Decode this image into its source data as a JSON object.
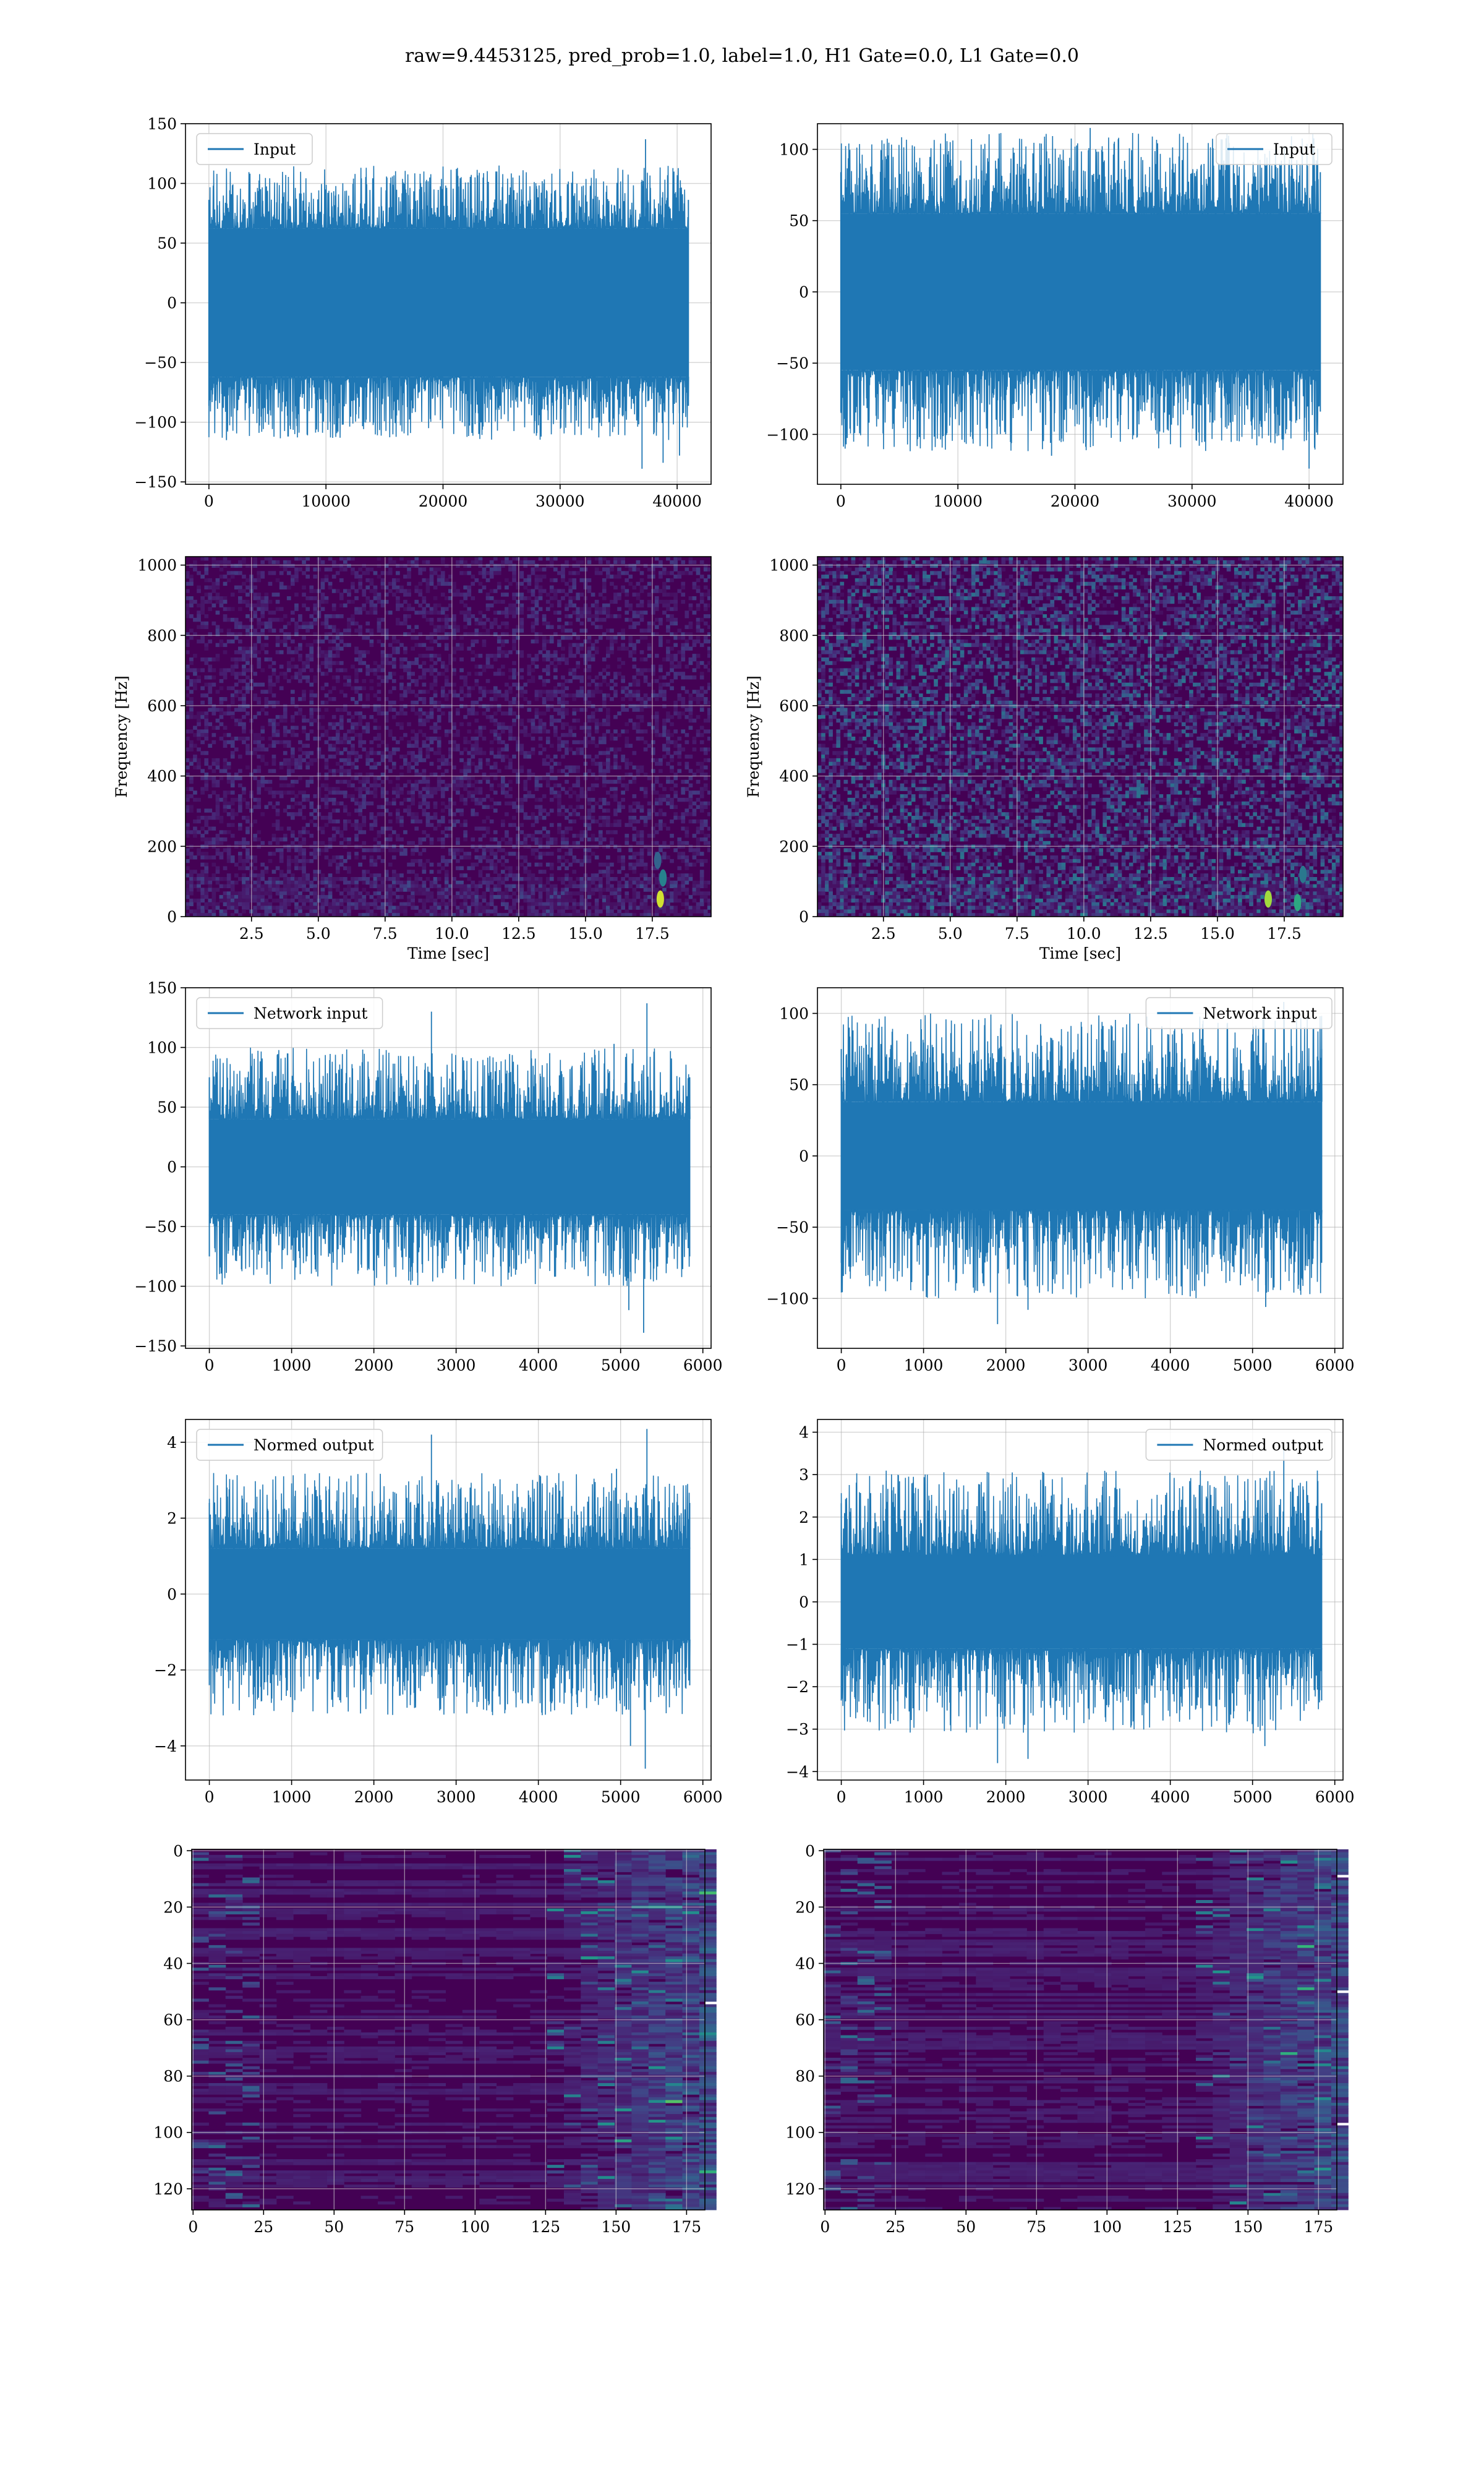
{
  "suptitle": "raw=9.4453125, pred_prob=1.0, label=1.0, H1 Gate=0.0, L1 Gate=0.0",
  "colors": {
    "series": "#1f77b4",
    "grid": "#b0b0b0",
    "viridis_dark": "#440154",
    "viridis_blue": "#3b528b",
    "viridis_teal": "#21918c",
    "viridis_green": "#5ec962",
    "viridis_yellow": "#fde725"
  },
  "chart_data": [
    {
      "id": "input-h1",
      "type": "line",
      "legend": "Input",
      "legend_loc": "upper-left",
      "xlim": [
        -2000,
        42900
      ],
      "ylim": [
        -152,
        150
      ],
      "xticks": [
        0,
        10000,
        20000,
        30000,
        40000
      ],
      "yticks": [
        -150,
        -100,
        -50,
        0,
        50,
        100,
        150
      ],
      "ytick_labels": [
        "−150",
        "−100",
        "−50",
        "0",
        "50",
        "100",
        "150"
      ],
      "xlabel": "",
      "ylabel": "",
      "x_range": [
        0,
        40960
      ],
      "n_points": 900,
      "band": [
        -62,
        62
      ],
      "env_max": 115,
      "env_min": -115,
      "spikes": [
        {
          "x": 37300,
          "y": 137
        },
        {
          "x": 37000,
          "y": -139
        },
        {
          "x": 38800,
          "y": -134
        },
        {
          "x": 40200,
          "y": -128
        },
        {
          "x": 1500,
          "y": -115
        }
      ]
    },
    {
      "id": "input-l1",
      "type": "line",
      "legend": "Input",
      "legend_loc": "upper-right",
      "xlim": [
        -2000,
        42900
      ],
      "ylim": [
        -135,
        118
      ],
      "xticks": [
        0,
        10000,
        20000,
        30000,
        40000
      ],
      "yticks": [
        -100,
        -50,
        0,
        50,
        100
      ],
      "ytick_labels": [
        "−100",
        "−50",
        "0",
        "50",
        "100"
      ],
      "xlabel": "",
      "ylabel": "",
      "x_range": [
        0,
        40960
      ],
      "n_points": 900,
      "band": [
        -55,
        55
      ],
      "env_max": 112,
      "env_min": -112,
      "spikes": [
        {
          "x": 21300,
          "y": 115
        },
        {
          "x": 40000,
          "y": -124
        },
        {
          "x": 18000,
          "y": -115
        }
      ]
    },
    {
      "id": "spec-h1",
      "type": "heatmap",
      "cmap": "viridis",
      "xlim": [
        0.03,
        19.7
      ],
      "ylim": [
        0,
        1024
      ],
      "xticks": [
        2.5,
        5,
        7.5,
        10,
        12.5,
        15,
        17.5
      ],
      "xtick_labels": [
        "2.5",
        "5.0",
        "7.5",
        "10.0",
        "12.5",
        "15.0",
        "17.5"
      ],
      "yticks": [
        0,
        200,
        400,
        600,
        800,
        1000
      ],
      "ytick_labels": [
        "0",
        "200",
        "400",
        "600",
        "800",
        "1000"
      ],
      "xlabel": "Time [sec]",
      "ylabel": "Frequency [Hz]",
      "noise_level": 0.1,
      "seed": 11,
      "hot_spots": [
        {
          "t": 17.8,
          "f": 50,
          "v": 0.95
        },
        {
          "t": 17.9,
          "f": 110,
          "v": 0.55
        },
        {
          "t": 17.7,
          "f": 160,
          "v": 0.4
        }
      ]
    },
    {
      "id": "spec-l1",
      "type": "heatmap",
      "cmap": "viridis",
      "xlim": [
        0.03,
        19.7
      ],
      "ylim": [
        0,
        1024
      ],
      "xticks": [
        2.5,
        5,
        7.5,
        10,
        12.5,
        15,
        17.5
      ],
      "xtick_labels": [
        "2.5",
        "5.0",
        "7.5",
        "10.0",
        "12.5",
        "15.0",
        "17.5"
      ],
      "yticks": [
        0,
        200,
        400,
        600,
        800,
        1000
      ],
      "ytick_labels": [
        "0",
        "200",
        "400",
        "600",
        "800",
        "1000"
      ],
      "xlabel": "Time [sec]",
      "ylabel": "Frequency [Hz]",
      "noise_level": 0.22,
      "seed": 23,
      "hot_spots": [
        {
          "t": 16.9,
          "f": 50,
          "v": 0.9
        },
        {
          "t": 18.2,
          "f": 120,
          "v": 0.5
        },
        {
          "t": 18.0,
          "f": 40,
          "v": 0.7
        }
      ]
    },
    {
      "id": "network-input-h1",
      "type": "line",
      "legend": "Network input",
      "legend_loc": "upper-left",
      "xlim": [
        -290,
        6100
      ],
      "ylim": [
        -152,
        150
      ],
      "xticks": [
        0,
        1000,
        2000,
        3000,
        4000,
        5000,
        6000
      ],
      "yticks": [
        -150,
        -100,
        -50,
        0,
        50,
        100,
        150
      ],
      "ytick_labels": [
        "−150",
        "−100",
        "−50",
        "0",
        "50",
        "100",
        "150"
      ],
      "xlabel": "",
      "ylabel": "",
      "x_range": [
        0,
        5840
      ],
      "n_points": 900,
      "band": [
        -40,
        40
      ],
      "env_max": 100,
      "env_min": -100,
      "spikes": [
        {
          "x": 5320,
          "y": 137
        },
        {
          "x": 2700,
          "y": 130
        },
        {
          "x": 5280,
          "y": -139
        },
        {
          "x": 5100,
          "y": -120
        },
        {
          "x": 4920,
          "y": 103
        }
      ]
    },
    {
      "id": "network-input-l1",
      "type": "line",
      "legend": "Network input",
      "legend_loc": "upper-right",
      "xlim": [
        -290,
        6100
      ],
      "ylim": [
        -135,
        118
      ],
      "xticks": [
        0,
        1000,
        2000,
        3000,
        4000,
        5000,
        6000
      ],
      "yticks": [
        -100,
        -50,
        0,
        50,
        100
      ],
      "ytick_labels": [
        "−100",
        "−50",
        "0",
        "50",
        "100"
      ],
      "xlabel": "",
      "ylabel": "",
      "x_range": [
        0,
        5840
      ],
      "n_points": 900,
      "band": [
        -38,
        38
      ],
      "env_max": 100,
      "env_min": -100,
      "spikes": [
        {
          "x": 5380,
          "y": 108
        },
        {
          "x": 1900,
          "y": -118
        },
        {
          "x": 2270,
          "y": -108
        },
        {
          "x": 5160,
          "y": -106
        }
      ]
    },
    {
      "id": "normed-output-h1",
      "type": "line",
      "legend": "Normed output",
      "legend_loc": "upper-left",
      "xlim": [
        -290,
        6100
      ],
      "ylim": [
        -4.9,
        4.6
      ],
      "xticks": [
        0,
        1000,
        2000,
        3000,
        4000,
        5000,
        6000
      ],
      "yticks": [
        -4,
        -2,
        0,
        2,
        4
      ],
      "ytick_labels": [
        "−4",
        "−2",
        "0",
        "2",
        "4"
      ],
      "xlabel": "",
      "ylabel": "",
      "x_range": [
        0,
        5840
      ],
      "n_points": 900,
      "band": [
        -1.2,
        1.2
      ],
      "env_max": 3.2,
      "env_min": -3.2,
      "spikes": [
        {
          "x": 5320,
          "y": 4.35
        },
        {
          "x": 2700,
          "y": 4.2
        },
        {
          "x": 5300,
          "y": -4.6
        },
        {
          "x": 5120,
          "y": -4.0
        },
        {
          "x": 4950,
          "y": 3.3
        }
      ]
    },
    {
      "id": "normed-output-l1",
      "type": "line",
      "legend": "Normed output",
      "legend_loc": "upper-right",
      "xlim": [
        -290,
        6100
      ],
      "ylim": [
        -4.2,
        4.3
      ],
      "xticks": [
        0,
        1000,
        2000,
        3000,
        4000,
        5000,
        6000
      ],
      "yticks": [
        -4,
        -3,
        -2,
        -1,
        0,
        1,
        2,
        3,
        4
      ],
      "ytick_labels": [
        "−4",
        "−3",
        "−2",
        "−1",
        "0",
        "1",
        "2",
        "3",
        "4"
      ],
      "xlabel": "",
      "ylabel": "",
      "x_range": [
        0,
        5840
      ],
      "n_points": 900,
      "band": [
        -1.1,
        1.1
      ],
      "env_max": 3.1,
      "env_min": -3.1,
      "spikes": [
        {
          "x": 5380,
          "y": 3.6
        },
        {
          "x": 1900,
          "y": -3.8
        },
        {
          "x": 2270,
          "y": -3.7
        },
        {
          "x": 5150,
          "y": -3.4
        }
      ]
    },
    {
      "id": "activation-map-h1",
      "type": "heatmap",
      "cmap": "viridis",
      "origin": "upper",
      "xlim": [
        -0.5,
        181.5
      ],
      "ylim": [
        127.5,
        -0.5
      ],
      "xticks": [
        0,
        25,
        50,
        75,
        100,
        125,
        150,
        175
      ],
      "yticks": [
        0,
        20,
        40,
        60,
        80,
        100,
        120
      ],
      "xlabel": "",
      "ylabel": "",
      "rows": 128,
      "cols": 182,
      "hot_start_col": 125,
      "seed": 37
    },
    {
      "id": "activation-map-l1",
      "type": "heatmap",
      "cmap": "viridis",
      "origin": "upper",
      "xlim": [
        -0.5,
        181.5
      ],
      "ylim": [
        127.5,
        -0.5
      ],
      "xticks": [
        0,
        25,
        50,
        75,
        100,
        125,
        150,
        175
      ],
      "yticks": [
        0,
        20,
        40,
        60,
        80,
        100,
        120
      ],
      "xlabel": "",
      "ylabel": "",
      "rows": 128,
      "cols": 182,
      "hot_start_col": 130,
      "seed": 53
    }
  ]
}
